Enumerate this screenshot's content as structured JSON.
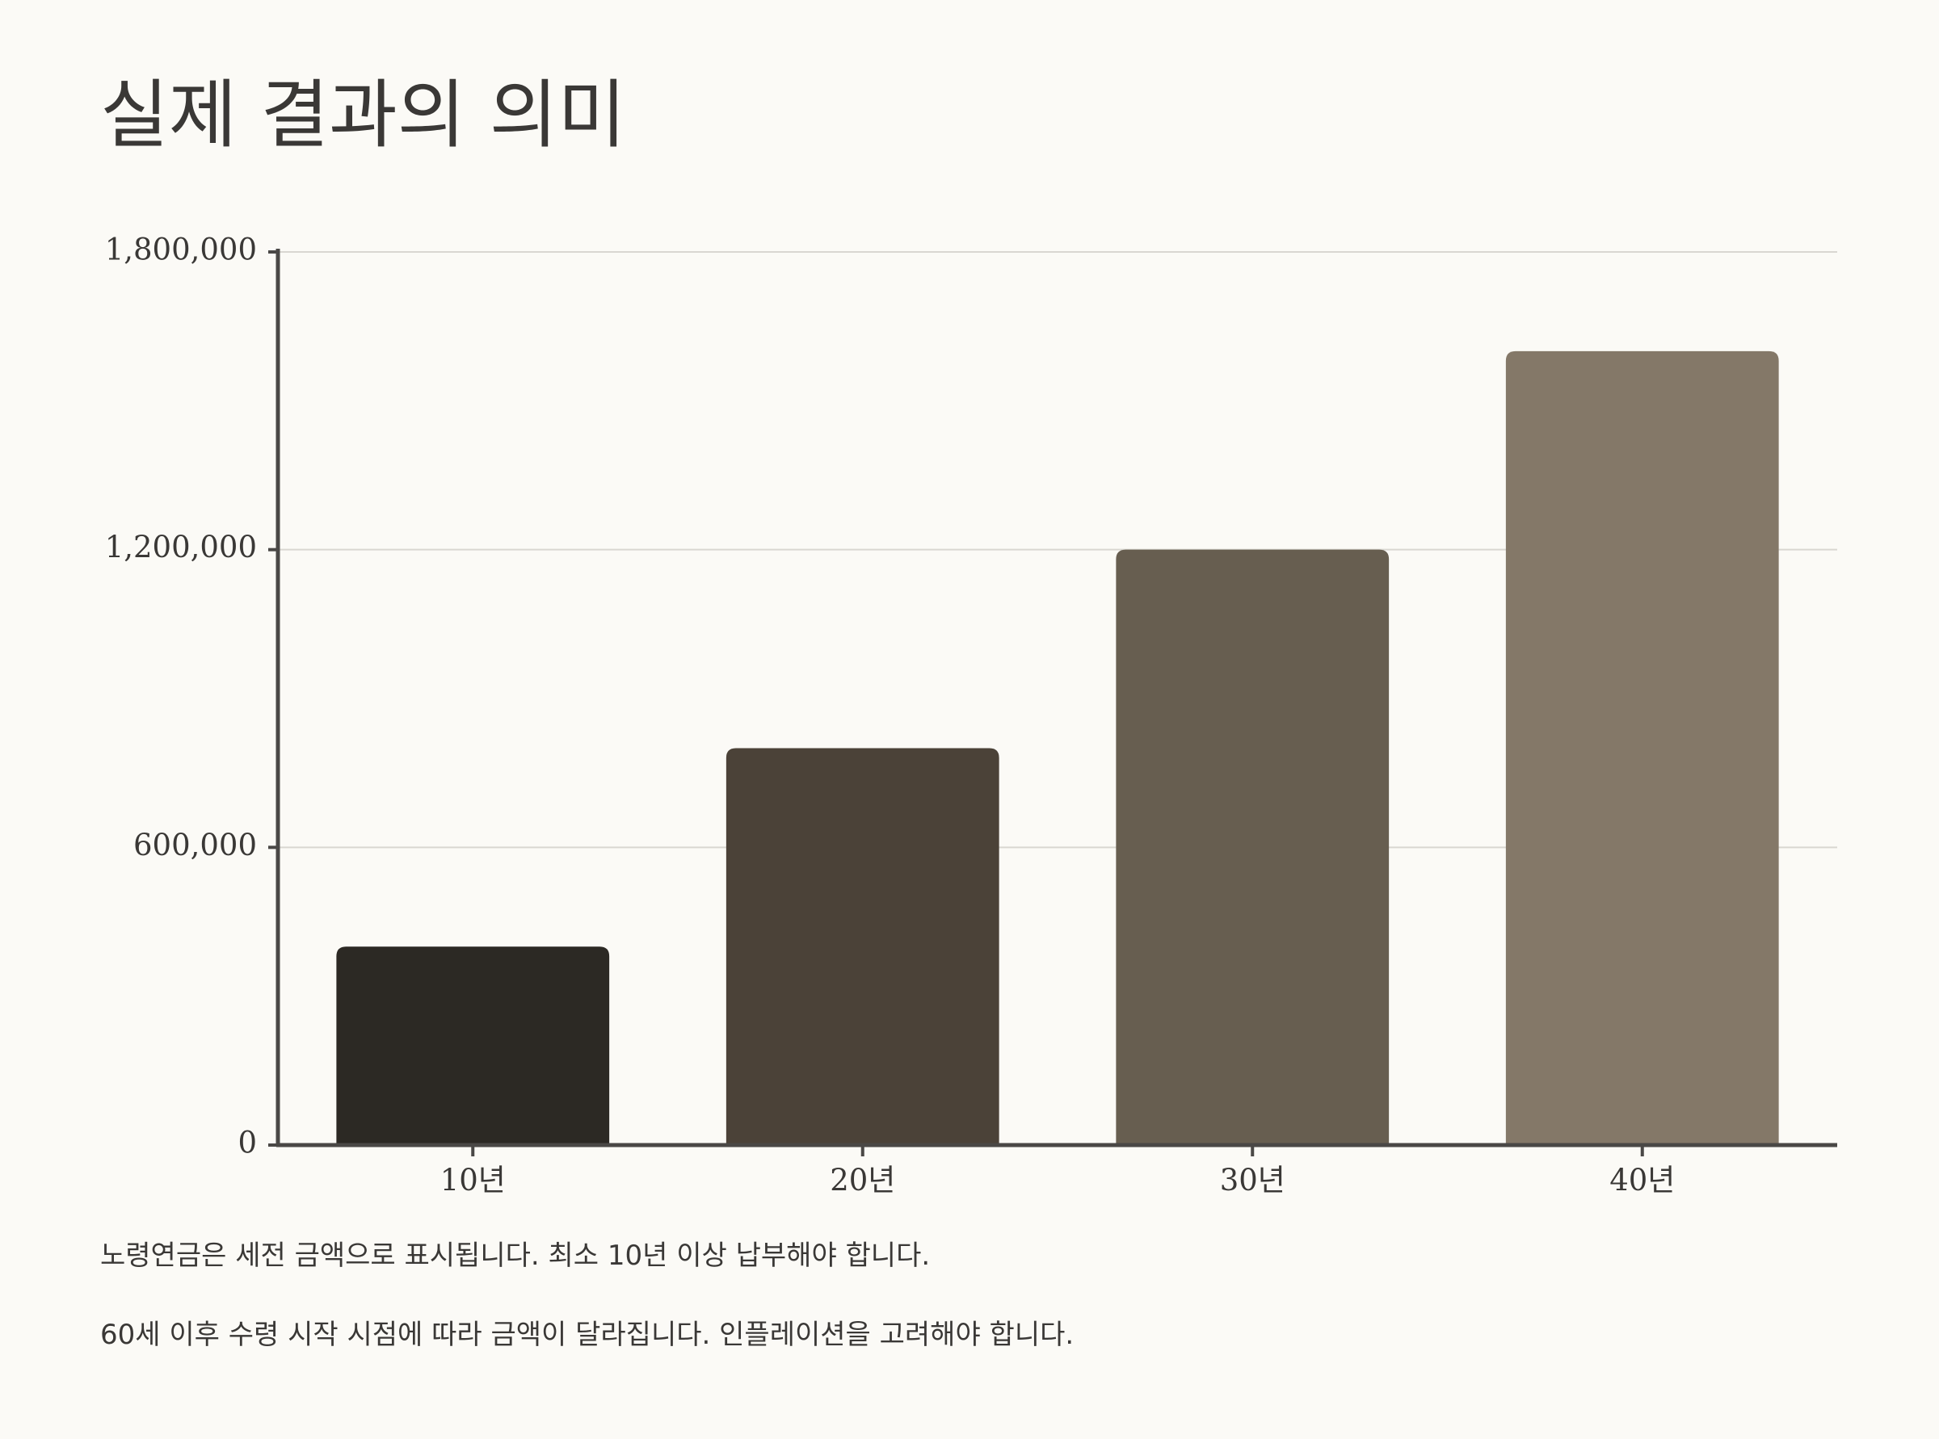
{
  "title": "실제 결과의 의미",
  "notes": [
    "노령연금은 세전 금액으로 표시됩니다. 최소 10년 이상 납부해야 합니다.",
    "60세 이후 수령 시작 시점에 따라 금액이 달라집니다. 인플레이션을 고려해야 합니다."
  ],
  "chart_data": {
    "type": "bar",
    "categories": [
      "10년",
      "20년",
      "30년",
      "40년"
    ],
    "values": [
      400000,
      800000,
      1200000,
      1600000
    ],
    "colors": [
      "#2c2924",
      "#4b4238",
      "#675e50",
      "#847868"
    ],
    "ylim": [
      0,
      1800000
    ],
    "yticks": [
      {
        "value": 0,
        "label": "0"
      },
      {
        "value": 600000,
        "label": "600,000"
      },
      {
        "value": 1200000,
        "label": "1,200,000"
      },
      {
        "value": 1800000,
        "label": "1,800,000"
      }
    ],
    "grid": true,
    "legend": "none",
    "axis_color": "#4a4846",
    "grid_color": "#d9d7d1"
  }
}
